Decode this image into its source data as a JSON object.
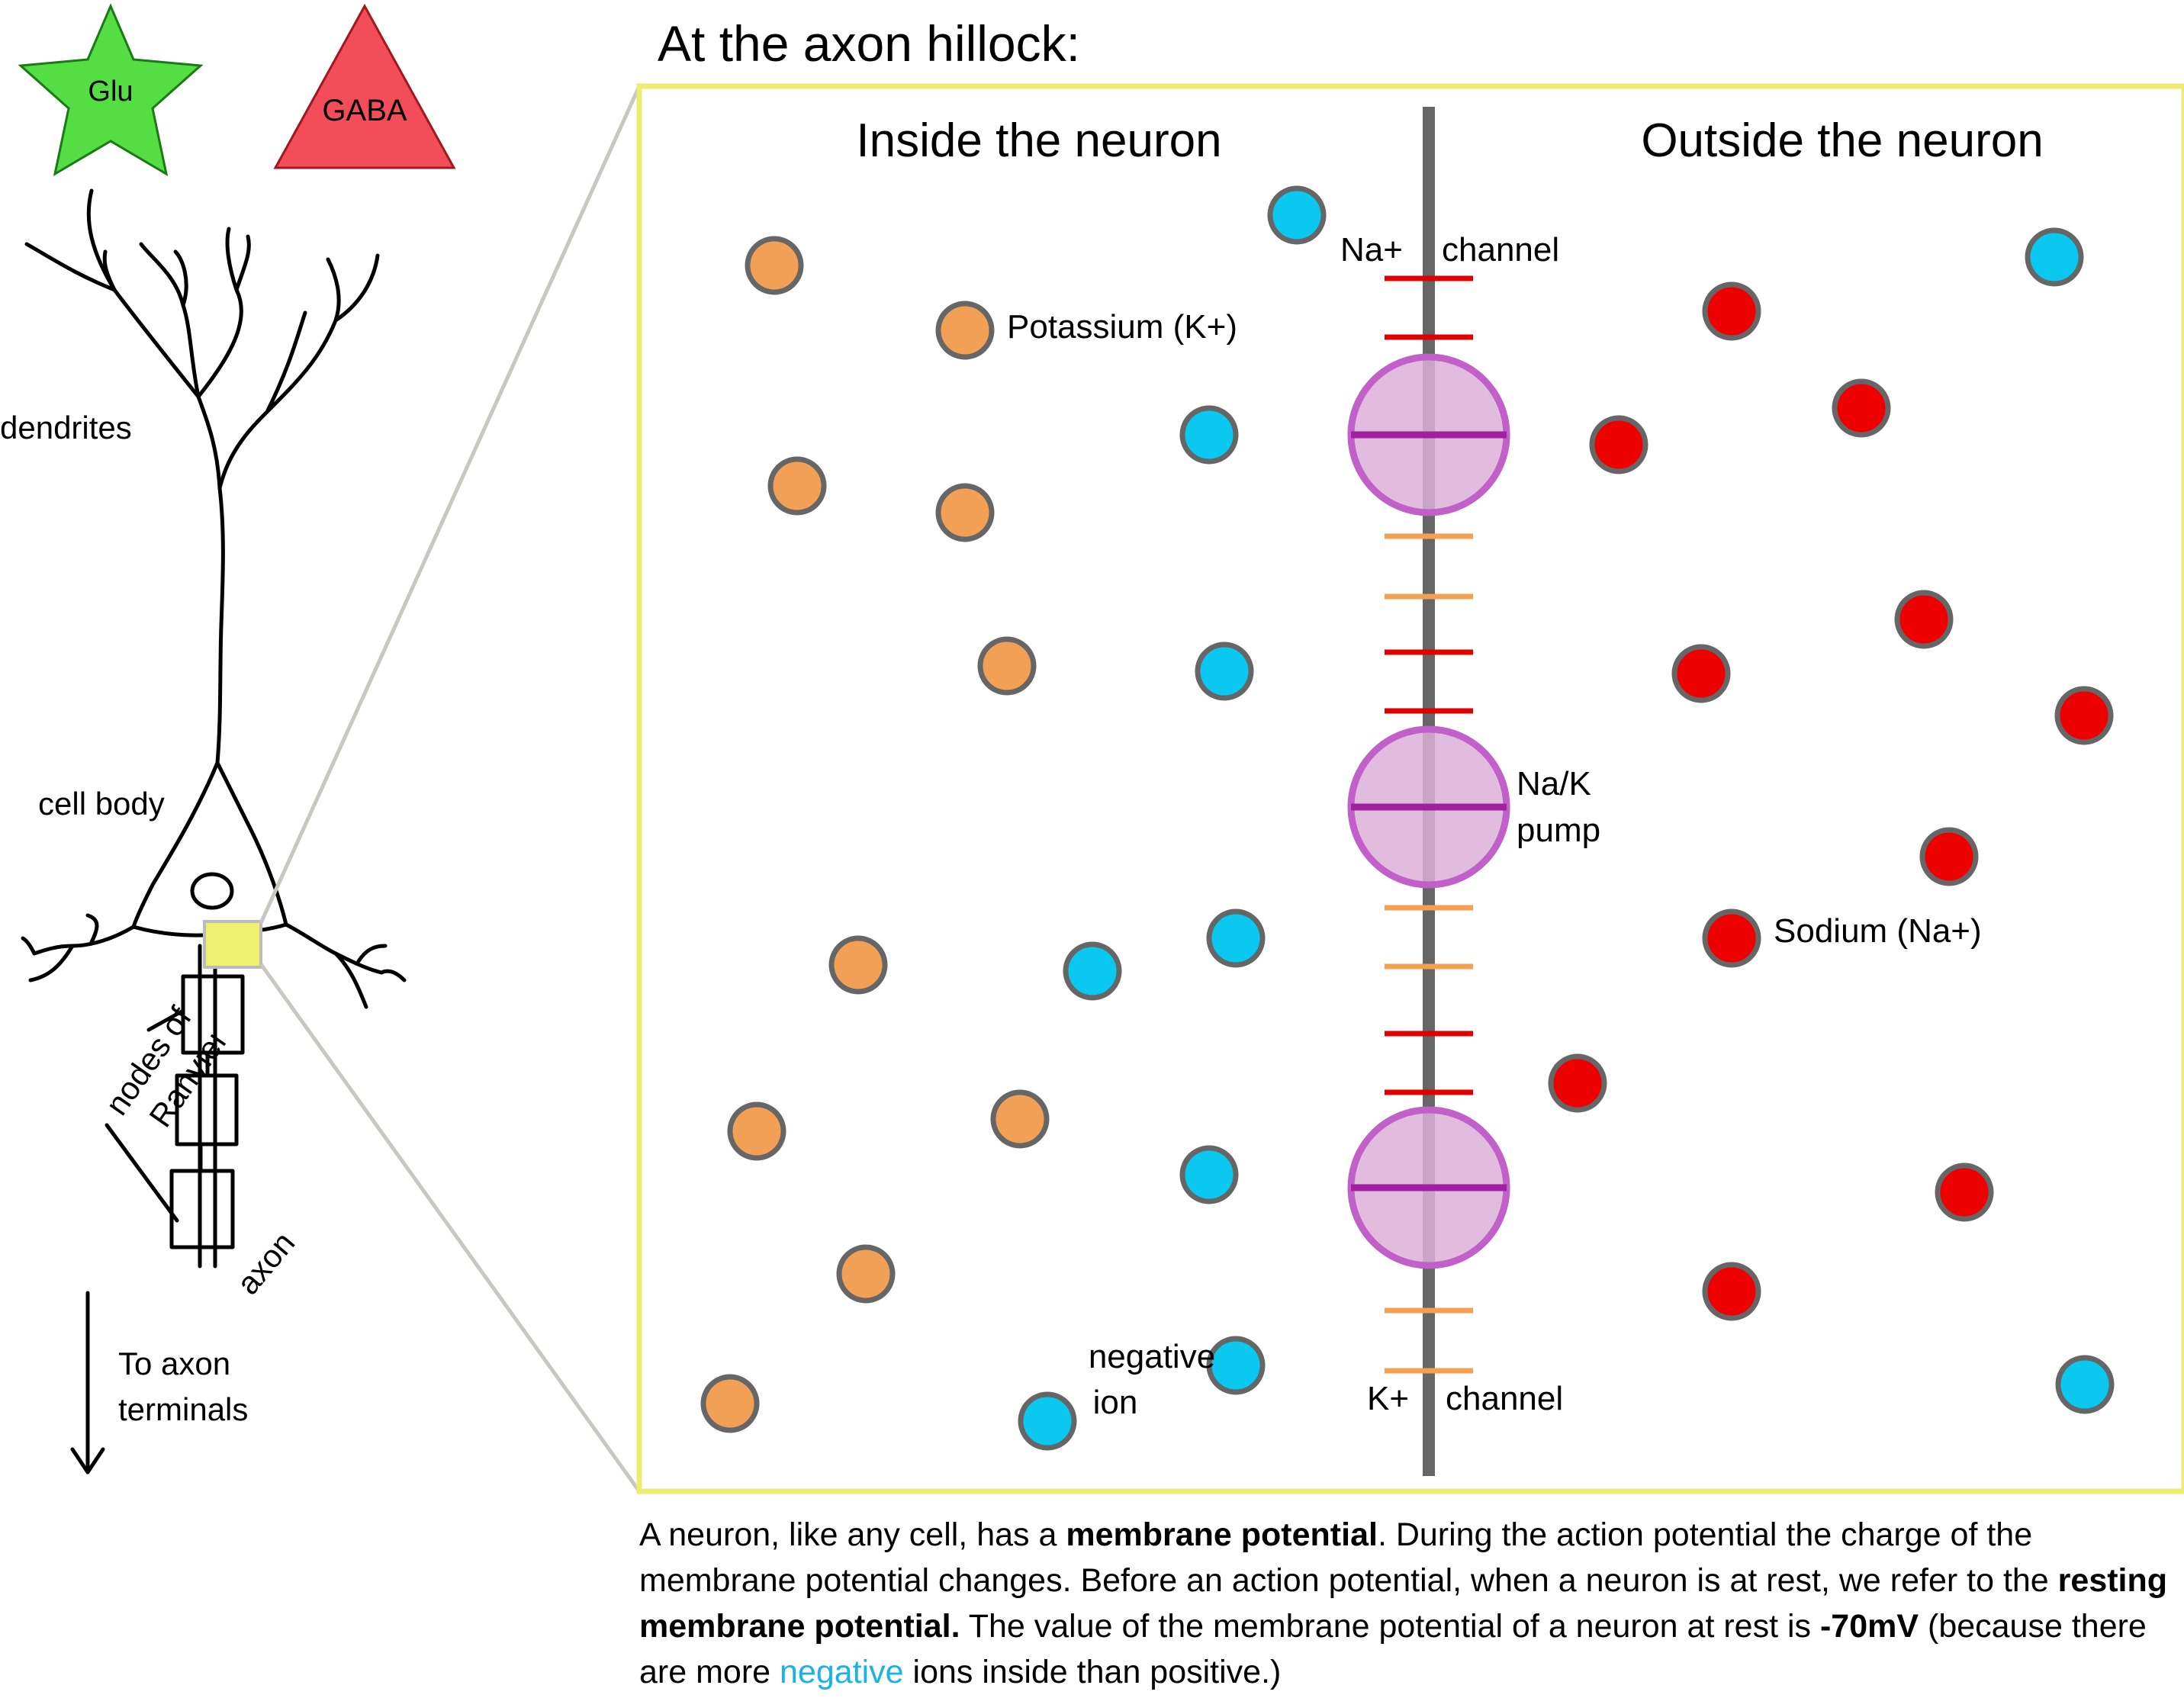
{
  "title": "At the axon hillock:",
  "legend": {
    "glu": "Glu",
    "gaba": "GABA"
  },
  "neuron_labels": {
    "dendrites": "dendrites",
    "cell_body": "cell body",
    "nodes_line1": "nodes of",
    "nodes_line2": "Ranvier",
    "axon": "axon",
    "terminals_line1": "To axon",
    "terminals_line2": "terminals"
  },
  "panel": {
    "inside": "Inside the neuron",
    "outside": "Outside the neuron",
    "na_channel_a": "Na+",
    "na_channel_b": "channel",
    "k_channel_a": "K+",
    "k_channel_b": "channel",
    "pump_line1": "Na/K",
    "pump_line2": "pump",
    "potassium": "Potassium (K+)",
    "sodium": "Sodium (Na+)",
    "negative_line1": "negative",
    "negative_line2": "ion"
  },
  "caption": {
    "p1": "A neuron, like any cell, has a ",
    "b1": "membrane potential",
    "p2": ". During the action potential the charge of the membrane potential changes. Before an action potential, when a neuron is at rest, we refer to the ",
    "b2": "resting membrane potential.",
    "p3": " The value of the membrane potential of a neuron at rest is ",
    "b3": "-70mV",
    "p4": " (because there are more ",
    "neg": "negative",
    "p5": " ions inside than positive.)"
  },
  "colors": {
    "potassium": "#f2a055",
    "sodium": "#ee0000",
    "negative": "#0ac8f0",
    "pump_fill": "#dcb0d8",
    "pump_stroke": "#c060c8",
    "na_channel": "#e00000",
    "k_channel": "#f5a050",
    "panel_border": "#ecec70",
    "highlight": "#f0f070",
    "glu": "#55dd44",
    "gaba": "#f24d58",
    "negative_word": "#1ab3e6"
  }
}
